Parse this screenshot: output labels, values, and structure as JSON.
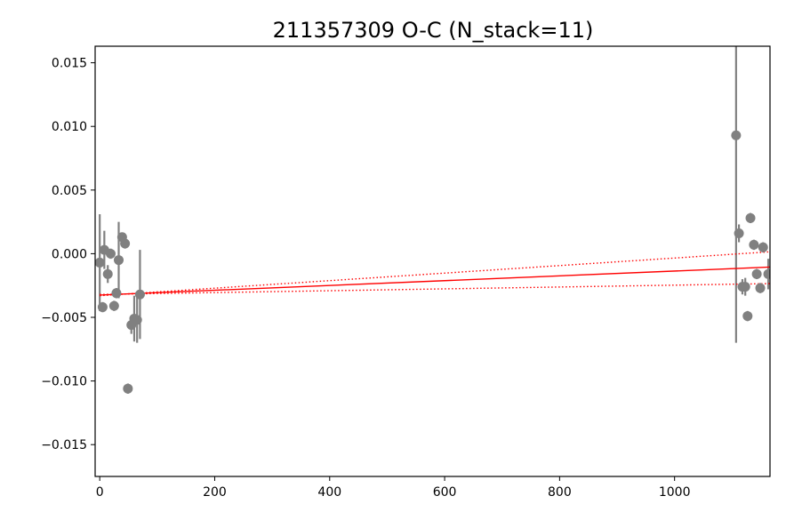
{
  "chart_data": {
    "type": "scatter",
    "title": "211357309 O-C (N_stack=11)",
    "xlabel": "",
    "ylabel": "",
    "xlim": [
      -8,
      1166
    ],
    "ylim": [
      -0.0175,
      0.0163
    ],
    "xticks": [
      0,
      200,
      400,
      600,
      800,
      1000
    ],
    "xtick_labels": [
      "0",
      "200",
      "400",
      "600",
      "800",
      "1000"
    ],
    "yticks": [
      -0.015,
      -0.01,
      -0.005,
      0.0,
      0.005,
      0.01,
      0.015
    ],
    "ytick_labels": [
      "−0.015",
      "−0.010",
      "−0.005",
      "0.000",
      "0.005",
      "0.010",
      "0.015"
    ],
    "grid": false,
    "marker_color": "#808080",
    "fit_color": "#ff0000",
    "points": [
      {
        "x": 0,
        "y": -0.0007,
        "err": 0.0038
      },
      {
        "x": 5,
        "y": -0.0042,
        "err": 0.0004
      },
      {
        "x": 8,
        "y": 0.0003,
        "err": 0.0015
      },
      {
        "x": 14,
        "y": -0.0016,
        "err": 0.0007
      },
      {
        "x": 19,
        "y": 0.0,
        "err": 0.0004
      },
      {
        "x": 25,
        "y": -0.0041,
        "err": 0.0004
      },
      {
        "x": 29,
        "y": -0.0031,
        "err": 0.0004
      },
      {
        "x": 33,
        "y": -0.0005,
        "err": 0.003
      },
      {
        "x": 39,
        "y": 0.0013,
        "err": 0.0003
      },
      {
        "x": 44,
        "y": 0.0008,
        "err": 0.0004
      },
      {
        "x": 49,
        "y": -0.0106,
        "err": 0.0004
      },
      {
        "x": 55,
        "y": -0.0056,
        "err": 0.0007
      },
      {
        "x": 60,
        "y": -0.0051,
        "err": 0.0018
      },
      {
        "x": 65,
        "y": -0.0052,
        "err": 0.0018
      },
      {
        "x": 70,
        "y": -0.0032,
        "err": 0.0035
      },
      {
        "x": 1107,
        "y": 0.0093,
        "err": 0.0163
      },
      {
        "x": 1112,
        "y": 0.0016,
        "err": 0.0007
      },
      {
        "x": 1118,
        "y": -0.0026,
        "err": 0.0006
      },
      {
        "x": 1123,
        "y": -0.0026,
        "err": 0.0007
      },
      {
        "x": 1127,
        "y": -0.0049,
        "err": 0.0004
      },
      {
        "x": 1132,
        "y": 0.0028,
        "err": 0.0004
      },
      {
        "x": 1138,
        "y": 0.0007,
        "err": 0.0004
      },
      {
        "x": 1143,
        "y": -0.0016,
        "err": 0.0004
      },
      {
        "x": 1149,
        "y": -0.0027,
        "err": 0.0004
      },
      {
        "x": 1154,
        "y": 0.0005,
        "err": 0.0004
      },
      {
        "x": 1163,
        "y": -0.0016,
        "err": 0.0012
      }
    ],
    "fit_line": {
      "x": [
        0,
        1166
      ],
      "y": [
        -0.00325,
        -0.00105
      ]
    },
    "fit_upper": {
      "x": [
        0,
        1166
      ],
      "y": [
        -0.0033,
        0.00015
      ]
    },
    "fit_lower": {
      "x": [
        0,
        1166
      ],
      "y": [
        -0.0032,
        -0.00235
      ]
    }
  }
}
